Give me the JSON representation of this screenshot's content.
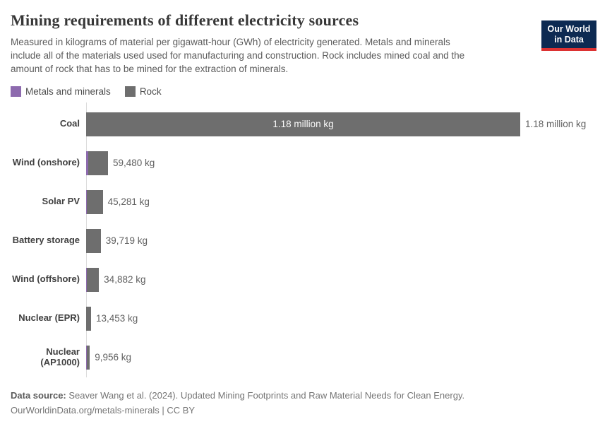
{
  "header": {
    "title": "Mining requirements of different electricity sources",
    "subtitle_lines": [
      "Measured in kilograms of material per gigawatt-hour (GWh) of electricity generated. Metals and minerals",
      "include all of the materials used used for manufacturing and construction. Rock includes mined coal and the",
      "amount of rock that has to be mined for the extraction of minerals."
    ],
    "logo": {
      "line1": "Our World",
      "line2": "in Data",
      "bg_color": "#0d2a52",
      "stripe_color": "#dc3232"
    }
  },
  "legend": [
    {
      "label": "Metals and minerals",
      "color": "#8d6aae"
    },
    {
      "label": "Rock",
      "color": "#6e6e6e"
    }
  ],
  "chart_data": {
    "type": "bar",
    "orientation": "horizontal",
    "title": "Mining requirements of different electricity sources",
    "unit": "kg of material per GWh",
    "categories": [
      "Coal",
      "Wind (onshore)",
      "Solar PV",
      "Battery storage",
      "Wind (offshore)",
      "Nuclear (EPR)",
      "Nuclear (AP1000)"
    ],
    "totals": [
      1180000,
      59480,
      45281,
      39719,
      34882,
      13453,
      9956
    ],
    "total_labels": [
      "1.18 million kg",
      "59,480 kg",
      "45,281 kg",
      "39,719 kg",
      "34,882 kg",
      "13,453 kg",
      "9,956 kg"
    ],
    "inside_labels": [
      "1.18 million kg",
      "",
      "",
      "",
      "",
      "",
      ""
    ],
    "series": [
      {
        "name": "Metals and minerals",
        "color": "#8d6aae",
        "values": [
          0,
          5500,
          1000,
          0,
          2500,
          0,
          2000
        ],
        "note": "estimated from pixel widths; segments unlabeled in chart"
      },
      {
        "name": "Rock",
        "color": "#6e6e6e",
        "values": [
          1180000,
          53980,
          44281,
          39719,
          32382,
          13453,
          7956
        ]
      }
    ],
    "xlim": [
      0,
      1180000
    ],
    "grid": false,
    "legend_position": "top"
  },
  "footer": {
    "datasource_label": "Data source:",
    "datasource_text": " Seaver Wang et al. (2024). Updated Mining Footprints and Raw Material Needs for Clean Energy.",
    "license_line": "OurWorldinData.org/metals-minerals | CC BY"
  }
}
